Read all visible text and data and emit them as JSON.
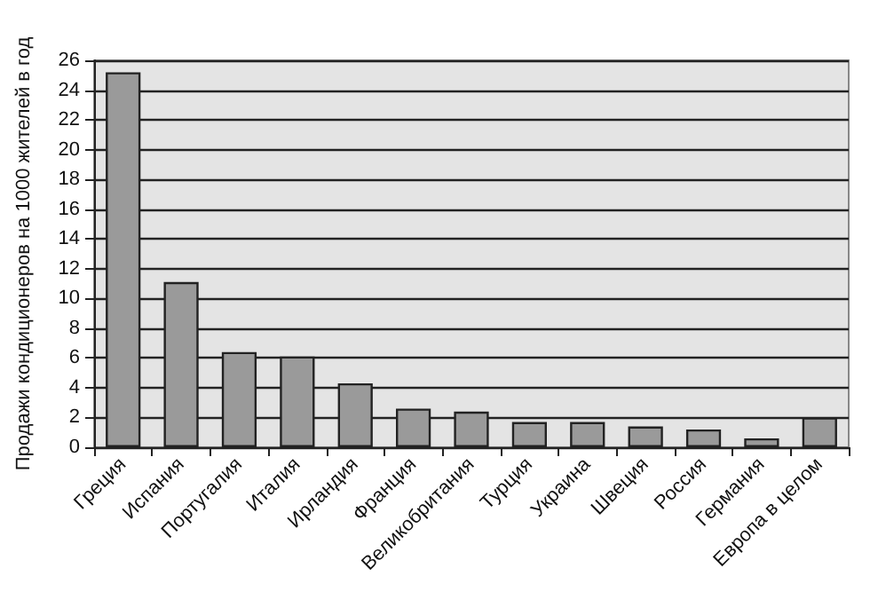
{
  "chart_data": {
    "type": "bar",
    "ylabel": "Продажи кондиционеров на 1000 жителей в год",
    "categories": [
      "Греция",
      "Испания",
      "Португалия",
      "Италия",
      "Ирландия",
      "Франция",
      "Великобритания",
      "Турция",
      "Украина",
      "Швеция",
      "Россия",
      "Германия",
      "Европа в целом"
    ],
    "values": [
      25.2,
      11.1,
      6.4,
      6.1,
      4.3,
      2.6,
      2.4,
      1.7,
      1.7,
      1.4,
      1.2,
      0.6,
      2.0
    ],
    "color": "#9a9a9a",
    "ylim": [
      0,
      26
    ],
    "yticks": [
      0,
      2,
      4,
      6,
      8,
      10,
      12,
      14,
      16,
      18,
      20,
      22,
      24,
      26
    ],
    "grid": "y"
  }
}
